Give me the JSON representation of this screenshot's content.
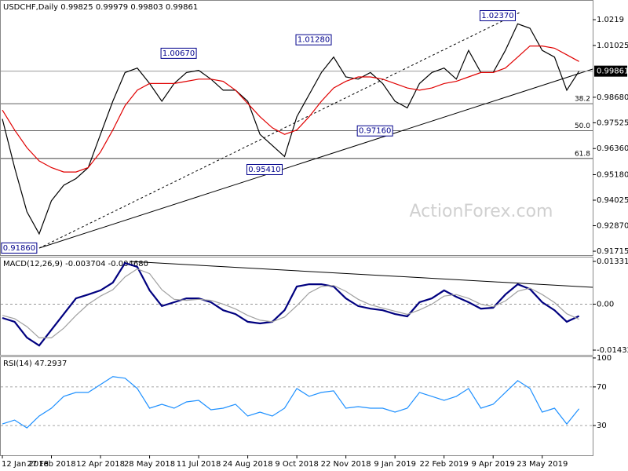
{
  "chart_data": [
    {
      "type": "line",
      "title": "USDCHF,Daily  0.99825 0.99979 0.99803 0.99861",
      "watermark": "ActionForex.com",
      "categories": [
        "12 Jan 2018",
        null,
        null,
        null,
        "27 Feb 2018",
        null,
        null,
        null,
        "12 Apr 2018",
        null,
        null,
        null,
        "28 May 2018",
        null,
        null,
        null,
        "11 Jul 2018",
        null,
        null,
        null,
        "24 Aug 2018",
        null,
        null,
        null,
        "9 Oct 2018",
        null,
        null,
        null,
        "22 Nov 2018",
        null,
        null,
        null,
        "9 Jan 2019",
        null,
        null,
        null,
        "22 Feb 2019",
        null,
        null,
        null,
        "9 Apr 2019",
        null,
        null,
        null,
        "23 May 2019",
        null,
        null,
        null
      ],
      "series": [
        {
          "color": "#000000",
          "values": [
            0.977,
            0.955,
            0.935,
            0.925,
            0.94,
            0.947,
            0.95,
            0.955,
            0.97,
            0.985,
            0.998,
            1.0,
            0.993,
            0.985,
            0.993,
            0.998,
            0.999,
            0.995,
            0.99,
            0.99,
            0.985,
            0.97,
            0.965,
            0.96,
            0.978,
            0.988,
            0.998,
            1.005,
            0.996,
            0.995,
            0.998,
            0.993,
            0.985,
            0.982,
            0.993,
            0.998,
            1.0,
            0.995,
            1.008,
            0.998,
            0.998,
            1.008,
            1.02,
            1.018,
            1.008,
            1.005,
            0.99,
            0.9986
          ]
        },
        {
          "color": "#e00000",
          "values": [
            0.981,
            0.972,
            0.964,
            0.958,
            0.955,
            0.953,
            0.953,
            0.955,
            0.962,
            0.972,
            0.983,
            0.99,
            0.993,
            0.993,
            0.993,
            0.994,
            0.995,
            0.995,
            0.994,
            0.99,
            0.984,
            0.978,
            0.973,
            0.97,
            0.972,
            0.978,
            0.985,
            0.991,
            0.994,
            0.996,
            0.996,
            0.995,
            0.993,
            0.991,
            0.99,
            0.991,
            0.993,
            0.994,
            0.996,
            0.998,
            0.998,
            1.0,
            1.005,
            1.01,
            1.01,
            1.009,
            1.006,
            1.003
          ]
        }
      ],
      "ylim": [
        0.91539,
        1.0308
      ],
      "yticks": [
        1.0219,
        {
          "value": 1.01025,
          "label": "1.01025"
        },
        {
          "value": 0.9868,
          "label": "0.98680"
        },
        0.97525,
        {
          "value": 0.9636,
          "label": "0.96360"
        },
        {
          "value": 0.9518,
          "label": "0.95180"
        },
        0.94025,
        {
          "value": 0.9287,
          "label": "0.92870"
        },
        0.91715
      ],
      "current": {
        "value": 0.99861,
        "label": "0.99861"
      },
      "levels": [
        {
          "value": 0.9839,
          "label": "38.2"
        },
        {
          "value": 0.9716,
          "label": "50.0"
        },
        {
          "value": 0.9591,
          "label": "61.8"
        }
      ],
      "annotations": [
        {
          "label": "0.91860",
          "value": 0.9186,
          "index": 3
        },
        {
          "label": "0.95410",
          "value": 0.9541,
          "index": 23
        },
        {
          "label": "0.97160",
          "value": 0.9716,
          "index": 32
        },
        {
          "label": "1.00670",
          "value": 1.0067,
          "index": 16
        },
        {
          "label": "1.01280",
          "value": 1.0128,
          "index": 27
        },
        {
          "label": "1.02370",
          "value": 1.0237,
          "index": 42
        }
      ]
    },
    {
      "type": "line",
      "title": "MACD(12,26,9) -0.003704 -0.004680",
      "series": [
        {
          "color": "#00007f",
          "values": [
            -0.0043,
            -0.0055,
            -0.0104,
            -0.0129,
            -0.008,
            -0.0031,
            0.0018,
            0.003,
            0.0043,
            0.0067,
            0.0128,
            0.0116,
            0.0043,
            -0.0006,
            0.0006,
            0.0018,
            0.0018,
            0.0006,
            -0.0019,
            -0.0031,
            -0.0055,
            -0.006,
            -0.0055,
            -0.0019,
            0.0055,
            0.0062,
            0.0062,
            0.0055,
            0.0018,
            -0.0006,
            -0.0014,
            -0.0019,
            -0.0031,
            -0.0038,
            0.0006,
            0.0018,
            0.0043,
            0.0023,
            0.0006,
            -0.0014,
            -0.0011,
            0.003,
            0.0062,
            0.0047,
            0.0006,
            -0.0019,
            -0.0055,
            -0.0037
          ]
        },
        {
          "color": "#a0a0a0",
          "values": [
            -0.0035,
            -0.0045,
            -0.007,
            -0.0105,
            -0.0105,
            -0.0075,
            -0.0035,
            0.0,
            0.0025,
            0.0045,
            0.0085,
            0.011,
            0.0095,
            0.0045,
            0.0015,
            0.0012,
            0.0015,
            0.0012,
            0.0,
            -0.0015,
            -0.0035,
            -0.005,
            -0.0055,
            -0.004,
            -0.0005,
            0.0035,
            0.0055,
            0.0058,
            0.004,
            0.0015,
            -0.0002,
            -0.0012,
            -0.0022,
            -0.0032,
            -0.0018,
            0.0,
            0.0025,
            0.003,
            0.0018,
            0.0,
            -0.0008,
            0.001,
            0.004,
            0.005,
            0.003,
            0.0005,
            -0.003,
            -0.0047
          ]
        }
      ],
      "ylim": [
        -0.01579,
        0.01479
      ],
      "yticks": [
        0.013319,
        {
          "value": 0,
          "label": "0.00"
        },
        -0.014323
      ],
      "levels": [
        0
      ]
    },
    {
      "type": "line",
      "title": "RSI(14) 47.2937",
      "series": [
        {
          "color": "#1e90ff",
          "values": [
            31.6,
            35.7,
            27.6,
            39.8,
            48.0,
            60.2,
            64.3,
            64.3,
            72.4,
            80.6,
            79.0,
            68.4,
            48.0,
            52.0,
            48.0,
            54.5,
            56.1,
            46.3,
            48.0,
            52.0,
            39.8,
            43.9,
            39.8,
            48.0,
            68.4,
            60.2,
            64.3,
            65.9,
            48.0,
            49.6,
            48.0,
            48.0,
            43.9,
            48.0,
            64.3,
            60.2,
            56.1,
            60.2,
            68.4,
            48.0,
            52.0,
            64.3,
            76.5,
            68.4,
            43.9,
            48.0,
            31.6,
            47.3
          ]
        }
      ],
      "ylim": [
        -0.8,
        101.6
      ],
      "yticks": [
        100,
        70,
        30
      ],
      "levels": [
        70,
        30
      ]
    }
  ]
}
